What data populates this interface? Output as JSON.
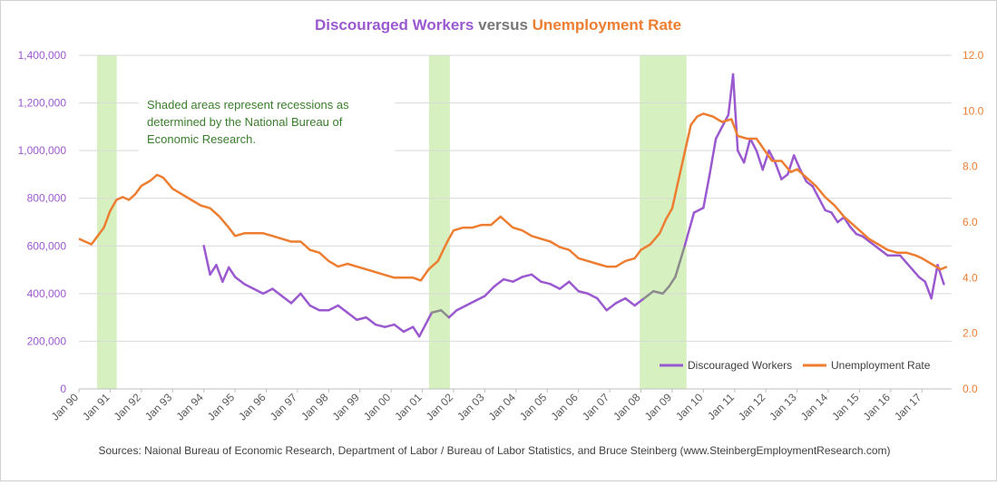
{
  "chart_data": {
    "type": "line",
    "title": {
      "part1": "Discouraged Workers",
      "part2": " versus ",
      "part3": "Unemployment Rate"
    },
    "y_left": {
      "ticks": [
        "0",
        "200,000",
        "400,000",
        "600,000",
        "800,000",
        "1,000,000",
        "1,200,000",
        "1,400,000"
      ],
      "range": [
        0,
        1400000
      ]
    },
    "y_right": {
      "ticks": [
        "0.0",
        "2.0",
        "4.0",
        "6.0",
        "8.0",
        "10.0",
        "12.0"
      ],
      "range": [
        0,
        12
      ]
    },
    "x_ticks": [
      "Jan 90",
      "Jan 91",
      "Jan 92",
      "Jan 93",
      "Jan 94",
      "Jan 95",
      "Jan 96",
      "Jan 97",
      "Jan 98",
      "Jan 99",
      "Jan 00",
      "Jan 01",
      "Jan 02",
      "Jan 03",
      "Jan 04",
      "Jan 05",
      "Jan 06",
      "Jan 07",
      "Jan 08",
      "Jan 09",
      "Jan 10",
      "Jan 11",
      "Jan 12",
      "Jan 13",
      "Jan 14",
      "Jan 15",
      "Jan 16",
      "Jan 17"
    ],
    "x_range": [
      1990.0,
      2017.95
    ],
    "recessions": [
      [
        1990.58,
        1991.21
      ],
      [
        2001.21,
        2001.88
      ],
      [
        2007.96,
        2009.46
      ]
    ],
    "series": [
      {
        "name": "Discouraged Workers",
        "axis": "left",
        "color": "#9b59d0",
        "recession_color": "#8c8c8c",
        "points": [
          [
            1994.0,
            600000
          ],
          [
            1994.2,
            480000
          ],
          [
            1994.4,
            520000
          ],
          [
            1994.6,
            450000
          ],
          [
            1994.8,
            510000
          ],
          [
            1995.0,
            470000
          ],
          [
            1995.3,
            440000
          ],
          [
            1995.6,
            420000
          ],
          [
            1995.9,
            400000
          ],
          [
            1996.2,
            420000
          ],
          [
            1996.5,
            390000
          ],
          [
            1996.8,
            360000
          ],
          [
            1997.1,
            400000
          ],
          [
            1997.4,
            350000
          ],
          [
            1997.7,
            330000
          ],
          [
            1998.0,
            330000
          ],
          [
            1998.3,
            350000
          ],
          [
            1998.6,
            320000
          ],
          [
            1998.9,
            290000
          ],
          [
            1999.2,
            300000
          ],
          [
            1999.5,
            270000
          ],
          [
            1999.8,
            260000
          ],
          [
            2000.1,
            270000
          ],
          [
            2000.4,
            240000
          ],
          [
            2000.7,
            260000
          ],
          [
            2000.9,
            220000
          ],
          [
            2001.1,
            270000
          ],
          [
            2001.3,
            320000
          ],
          [
            2001.6,
            330000
          ],
          [
            2001.85,
            300000
          ],
          [
            2002.1,
            330000
          ],
          [
            2002.4,
            350000
          ],
          [
            2002.7,
            370000
          ],
          [
            2003.0,
            390000
          ],
          [
            2003.3,
            430000
          ],
          [
            2003.6,
            460000
          ],
          [
            2003.9,
            450000
          ],
          [
            2004.2,
            470000
          ],
          [
            2004.5,
            480000
          ],
          [
            2004.8,
            450000
          ],
          [
            2005.1,
            440000
          ],
          [
            2005.4,
            420000
          ],
          [
            2005.7,
            450000
          ],
          [
            2006.0,
            410000
          ],
          [
            2006.3,
            400000
          ],
          [
            2006.6,
            380000
          ],
          [
            2006.9,
            330000
          ],
          [
            2007.2,
            360000
          ],
          [
            2007.5,
            380000
          ],
          [
            2007.8,
            350000
          ],
          [
            2008.1,
            380000
          ],
          [
            2008.4,
            410000
          ],
          [
            2008.7,
            400000
          ],
          [
            2008.9,
            430000
          ],
          [
            2009.1,
            470000
          ],
          [
            2009.4,
            600000
          ],
          [
            2009.7,
            740000
          ],
          [
            2010.0,
            760000
          ],
          [
            2010.2,
            900000
          ],
          [
            2010.4,
            1050000
          ],
          [
            2010.6,
            1100000
          ],
          [
            2010.8,
            1150000
          ],
          [
            2010.95,
            1320000
          ],
          [
            2011.1,
            1000000
          ],
          [
            2011.3,
            950000
          ],
          [
            2011.5,
            1050000
          ],
          [
            2011.7,
            1000000
          ],
          [
            2011.9,
            920000
          ],
          [
            2012.1,
            1000000
          ],
          [
            2012.3,
            950000
          ],
          [
            2012.5,
            880000
          ],
          [
            2012.7,
            900000
          ],
          [
            2012.9,
            980000
          ],
          [
            2013.1,
            920000
          ],
          [
            2013.3,
            870000
          ],
          [
            2013.5,
            850000
          ],
          [
            2013.7,
            800000
          ],
          [
            2013.9,
            750000
          ],
          [
            2014.1,
            740000
          ],
          [
            2014.3,
            700000
          ],
          [
            2014.5,
            720000
          ],
          [
            2014.7,
            680000
          ],
          [
            2014.9,
            650000
          ],
          [
            2015.1,
            640000
          ],
          [
            2015.3,
            620000
          ],
          [
            2015.5,
            600000
          ],
          [
            2015.7,
            580000
          ],
          [
            2015.9,
            560000
          ],
          [
            2016.1,
            560000
          ],
          [
            2016.3,
            560000
          ],
          [
            2016.5,
            530000
          ],
          [
            2016.7,
            500000
          ],
          [
            2016.9,
            470000
          ],
          [
            2017.1,
            450000
          ],
          [
            2017.3,
            380000
          ],
          [
            2017.5,
            520000
          ],
          [
            2017.7,
            440000
          ]
        ]
      },
      {
        "name": "Unemployment Rate",
        "axis": "right",
        "color": "#ed7d31",
        "points": [
          [
            1990.0,
            5.4
          ],
          [
            1990.2,
            5.3
          ],
          [
            1990.4,
            5.2
          ],
          [
            1990.6,
            5.5
          ],
          [
            1990.8,
            5.8
          ],
          [
            1991.0,
            6.4
          ],
          [
            1991.2,
            6.8
          ],
          [
            1991.4,
            6.9
          ],
          [
            1991.6,
            6.8
          ],
          [
            1991.8,
            7.0
          ],
          [
            1992.0,
            7.3
          ],
          [
            1992.3,
            7.5
          ],
          [
            1992.5,
            7.7
          ],
          [
            1992.7,
            7.6
          ],
          [
            1993.0,
            7.2
          ],
          [
            1993.3,
            7.0
          ],
          [
            1993.6,
            6.8
          ],
          [
            1993.9,
            6.6
          ],
          [
            1994.2,
            6.5
          ],
          [
            1994.5,
            6.2
          ],
          [
            1994.8,
            5.8
          ],
          [
            1995.0,
            5.5
          ],
          [
            1995.3,
            5.6
          ],
          [
            1995.6,
            5.6
          ],
          [
            1995.9,
            5.6
          ],
          [
            1996.2,
            5.5
          ],
          [
            1996.5,
            5.4
          ],
          [
            1996.8,
            5.3
          ],
          [
            1997.1,
            5.3
          ],
          [
            1997.4,
            5.0
          ],
          [
            1997.7,
            4.9
          ],
          [
            1998.0,
            4.6
          ],
          [
            1998.3,
            4.4
          ],
          [
            1998.6,
            4.5
          ],
          [
            1998.9,
            4.4
          ],
          [
            1999.2,
            4.3
          ],
          [
            1999.5,
            4.2
          ],
          [
            1999.8,
            4.1
          ],
          [
            2000.1,
            4.0
          ],
          [
            2000.4,
            4.0
          ],
          [
            2000.7,
            4.0
          ],
          [
            2000.95,
            3.9
          ],
          [
            2001.2,
            4.3
          ],
          [
            2001.5,
            4.6
          ],
          [
            2001.8,
            5.3
          ],
          [
            2002.0,
            5.7
          ],
          [
            2002.3,
            5.8
          ],
          [
            2002.6,
            5.8
          ],
          [
            2002.9,
            5.9
          ],
          [
            2003.2,
            5.9
          ],
          [
            2003.5,
            6.2
          ],
          [
            2003.7,
            6.0
          ],
          [
            2003.9,
            5.8
          ],
          [
            2004.2,
            5.7
          ],
          [
            2004.5,
            5.5
          ],
          [
            2004.8,
            5.4
          ],
          [
            2005.1,
            5.3
          ],
          [
            2005.4,
            5.1
          ],
          [
            2005.7,
            5.0
          ],
          [
            2006.0,
            4.7
          ],
          [
            2006.3,
            4.6
          ],
          [
            2006.6,
            4.5
          ],
          [
            2006.9,
            4.4
          ],
          [
            2007.2,
            4.4
          ],
          [
            2007.5,
            4.6
          ],
          [
            2007.8,
            4.7
          ],
          [
            2008.0,
            5.0
          ],
          [
            2008.3,
            5.2
          ],
          [
            2008.6,
            5.6
          ],
          [
            2008.8,
            6.1
          ],
          [
            2009.0,
            6.5
          ],
          [
            2009.2,
            7.5
          ],
          [
            2009.4,
            8.5
          ],
          [
            2009.6,
            9.5
          ],
          [
            2009.8,
            9.8
          ],
          [
            2010.0,
            9.9
          ],
          [
            2010.3,
            9.8
          ],
          [
            2010.6,
            9.6
          ],
          [
            2010.9,
            9.7
          ],
          [
            2011.1,
            9.1
          ],
          [
            2011.4,
            9.0
          ],
          [
            2011.7,
            9.0
          ],
          [
            2011.95,
            8.6
          ],
          [
            2012.2,
            8.2
          ],
          [
            2012.5,
            8.2
          ],
          [
            2012.8,
            7.8
          ],
          [
            2013.0,
            7.9
          ],
          [
            2013.3,
            7.6
          ],
          [
            2013.6,
            7.3
          ],
          [
            2013.9,
            6.9
          ],
          [
            2014.2,
            6.6
          ],
          [
            2014.5,
            6.2
          ],
          [
            2014.8,
            5.9
          ],
          [
            2015.0,
            5.7
          ],
          [
            2015.3,
            5.4
          ],
          [
            2015.6,
            5.2
          ],
          [
            2015.9,
            5.0
          ],
          [
            2016.2,
            4.9
          ],
          [
            2016.5,
            4.9
          ],
          [
            2016.8,
            4.8
          ],
          [
            2017.0,
            4.7
          ],
          [
            2017.3,
            4.5
          ],
          [
            2017.6,
            4.3
          ],
          [
            2017.8,
            4.4
          ]
        ]
      }
    ],
    "legend": {
      "position": "bottom-right"
    }
  },
  "annotation": {
    "line1": "Shaded areas represent recessions as",
    "line2": "determined by the National Bureau of",
    "line3": "Economic Research."
  },
  "footer": {
    "source": "Sources: Naional Bureau of Economic Research, Department of Labor / Bureau of Labor Statistics, and Bruce Steinberg (www.SteinbergEmploymentResearch.com)"
  },
  "colors": {
    "purple": "#9b59d0",
    "orange": "#ed7d31",
    "recession": "#d6f0c0",
    "grid": "#d9d9d9",
    "annotation_text": "#3a7d2c"
  }
}
